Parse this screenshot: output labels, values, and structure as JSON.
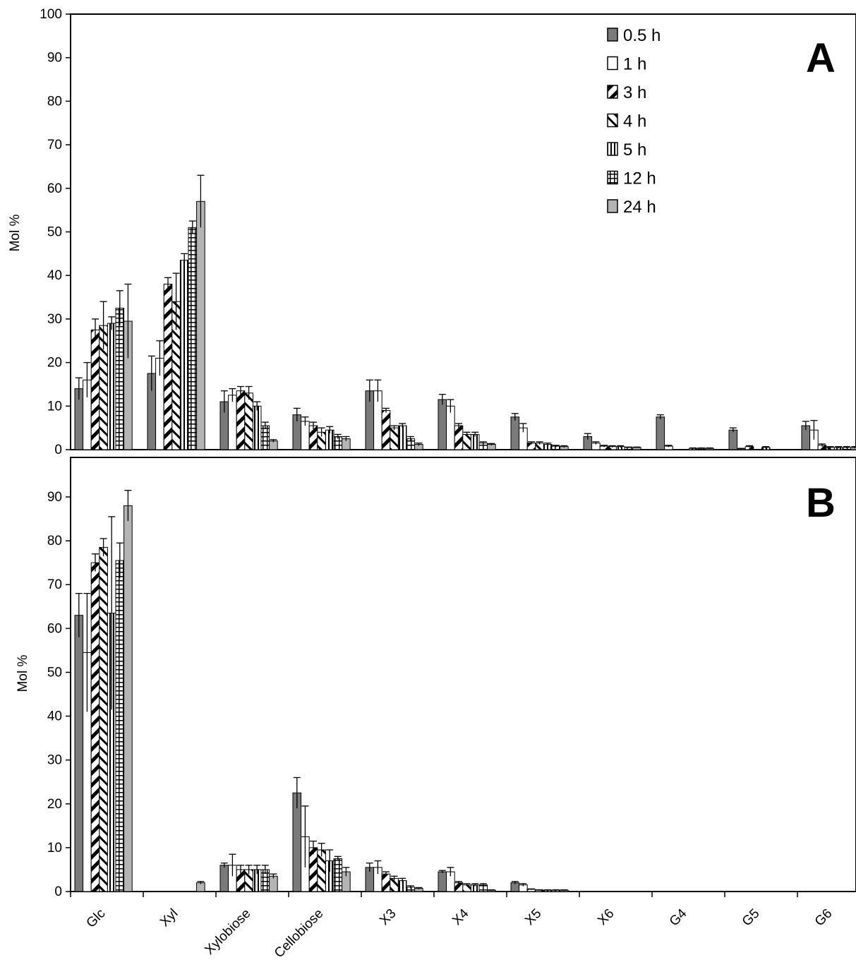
{
  "chart_data": [
    {
      "type": "bar",
      "panel_label": "A",
      "ylabel": "Mol %",
      "ylim": [
        0,
        100
      ],
      "yticks": [
        0,
        10,
        20,
        30,
        40,
        50,
        60,
        70,
        80,
        90,
        100
      ],
      "error_bars": true,
      "categories": [
        "Glc",
        "Xyl",
        "Xylobiose",
        "Cellobiose",
        "X3",
        "X4",
        "X5",
        "X6",
        "G4",
        "G5",
        "G6"
      ],
      "legend_position": "top-right",
      "series": [
        {
          "name": "0.5 h",
          "pattern": "solid-gray",
          "values": [
            14,
            17.5,
            11,
            8,
            13.5,
            11.5,
            7.5,
            3,
            7.5,
            4.5,
            5.5
          ],
          "errors": [
            2.5,
            4,
            2.5,
            1.5,
            2.5,
            1.2,
            0.8,
            0.7,
            0.5,
            0.5,
            1
          ]
        },
        {
          "name": "1 h",
          "pattern": "white",
          "values": [
            16,
            21,
            12.5,
            6.5,
            13.5,
            10,
            5,
            1.5,
            0.8,
            0.2,
            4.5
          ],
          "errors": [
            4,
            4,
            1.5,
            1,
            2.5,
            1.5,
            1,
            0.3,
            0.2,
            0.1,
            2.2
          ]
        },
        {
          "name": "3 h",
          "pattern": "diag-thick",
          "values": [
            27.5,
            38,
            13.5,
            5.5,
            9,
            5.5,
            1.5,
            0.8,
            0,
            0.7,
            1
          ],
          "errors": [
            2.5,
            1.5,
            1,
            0.8,
            0.5,
            0.5,
            0.3,
            0.2,
            0,
            0.2,
            0.3
          ]
        },
        {
          "name": "4 h",
          "pattern": "diag-thin",
          "values": [
            28.5,
            34,
            13,
            4,
            5,
            3.5,
            1.5,
            0.7,
            0,
            0,
            0.5
          ],
          "errors": [
            5.5,
            6.5,
            1.5,
            1,
            0.5,
            0.5,
            0.3,
            0.2,
            0,
            0,
            0.2
          ]
        },
        {
          "name": "5 h",
          "pattern": "vertical",
          "values": [
            29,
            43.5,
            10,
            4.5,
            5.5,
            3.5,
            1.2,
            0.7,
            0.3,
            0.5,
            0.5
          ],
          "errors": [
            1.5,
            1.5,
            1,
            0.8,
            0.5,
            0.5,
            0.3,
            0.2,
            0.1,
            0.2,
            0.2
          ]
        },
        {
          "name": "12 h",
          "pattern": "grid",
          "values": [
            32.5,
            51,
            5.5,
            3,
            2.5,
            1.5,
            0.8,
            0.5,
            0.3,
            0,
            0.5
          ],
          "errors": [
            4,
            1.5,
            0.8,
            0.5,
            0.5,
            0.3,
            0.2,
            0.1,
            0.1,
            0,
            0.2
          ]
        },
        {
          "name": "24 h",
          "pattern": "solid-light",
          "values": [
            29.5,
            57,
            2,
            2.5,
            1.2,
            1.2,
            0.7,
            0.5,
            0.3,
            0,
            0.5
          ],
          "errors": [
            8.5,
            6,
            0.3,
            0.5,
            0.3,
            0.2,
            0.2,
            0.1,
            0.1,
            0,
            0.2
          ]
        }
      ]
    },
    {
      "type": "bar",
      "panel_label": "B",
      "ylabel": "Mol %",
      "ylim": [
        0,
        100
      ],
      "yticks": [
        0,
        10,
        20,
        30,
        40,
        50,
        60,
        70,
        80,
        90
      ],
      "error_bars": true,
      "categories": [
        "Glc",
        "Xyl",
        "Xylobiose",
        "Cellobiose",
        "X3",
        "X4",
        "X5",
        "X6",
        "G4",
        "G5",
        "G6"
      ],
      "series": [
        {
          "name": "0.5 h",
          "pattern": "solid-gray",
          "values": [
            63,
            0,
            6,
            22.5,
            5.5,
            4.5,
            2,
            0,
            0,
            0,
            0
          ],
          "errors": [
            5,
            0,
            0.5,
            3.5,
            1,
            0.3,
            0.3,
            0,
            0,
            0,
            0
          ]
        },
        {
          "name": "1 h",
          "pattern": "white",
          "values": [
            54.5,
            0,
            6,
            12.5,
            5.5,
            4.5,
            1.5,
            0,
            0,
            0,
            0
          ],
          "errors": [
            13.5,
            0,
            2.5,
            7,
            1.5,
            1,
            0.3,
            0,
            0,
            0,
            0
          ]
        },
        {
          "name": "3 h",
          "pattern": "diag-thick",
          "values": [
            75,
            0,
            5,
            10,
            4,
            2,
            0.5,
            0,
            0,
            0,
            0
          ],
          "errors": [
            2,
            0,
            1,
            1.5,
            0.5,
            0.3,
            0.1,
            0,
            0,
            0,
            0
          ]
        },
        {
          "name": "4 h",
          "pattern": "diag-thin",
          "values": [
            78.5,
            0,
            5,
            9.5,
            3,
            1.5,
            0.3,
            0,
            0,
            0,
            0
          ],
          "errors": [
            2,
            0,
            1,
            1.5,
            0.5,
            0.3,
            0.1,
            0,
            0,
            0,
            0
          ]
        },
        {
          "name": "5 h",
          "pattern": "vertical",
          "values": [
            63.5,
            0,
            5,
            7,
            2.5,
            1.5,
            0.3,
            0,
            0,
            0,
            0
          ],
          "errors": [
            22,
            0,
            1,
            2.5,
            0.5,
            0.3,
            0.1,
            0,
            0,
            0,
            0
          ]
        },
        {
          "name": "12 h",
          "pattern": "grid",
          "values": [
            75.5,
            0,
            5,
            7.5,
            1,
            1.5,
            0.3,
            0,
            0,
            0,
            0
          ],
          "errors": [
            4,
            0,
            1,
            0.5,
            0.3,
            0.3,
            0.1,
            0,
            0,
            0,
            0
          ]
        },
        {
          "name": "24 h",
          "pattern": "solid-light",
          "values": [
            88,
            2,
            3.5,
            4.5,
            0.7,
            0.3,
            0.3,
            0,
            0,
            0,
            0
          ],
          "errors": [
            3.5,
            0.3,
            0.5,
            1,
            0.2,
            0.1,
            0.1,
            0,
            0,
            0,
            0
          ]
        }
      ]
    }
  ],
  "colors": {
    "bar_dark": "#7a7a7a",
    "bar_light": "#b4b4b4",
    "bar_white": "#ffffff",
    "axis": "#000000"
  }
}
